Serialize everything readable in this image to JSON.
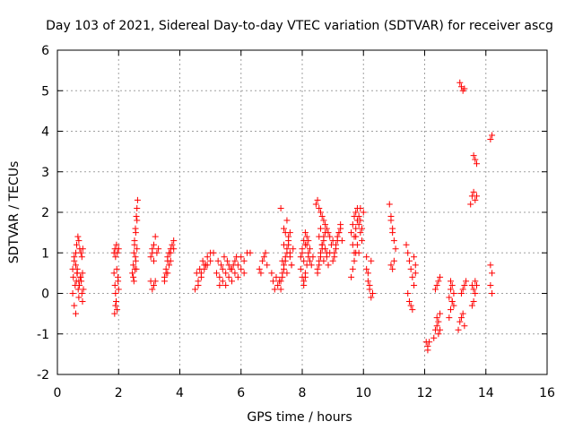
{
  "chart_data": {
    "type": "scatter",
    "title": "Day 103 of 2021, Sidereal Day-to-day VTEC variation (SDTVAR) for receiver ascg",
    "xlabel": "GPS time / hours",
    "ylabel": "SDTVAR / TECUs",
    "xlim": [
      0,
      16
    ],
    "ylim": [
      -2,
      6
    ],
    "x_ticks": [
      "0",
      "2",
      "4",
      "6",
      "8",
      "10",
      "12",
      "14",
      "16"
    ],
    "y_ticks": [
      "-2",
      "-1",
      "0",
      "1",
      "2",
      "3",
      "4",
      "5",
      "6"
    ],
    "grid": true,
    "marker": "plus",
    "color": "#ff0000",
    "series": [
      {
        "x": [
          0.5,
          0.55,
          0.6,
          0.62,
          0.65,
          0.68,
          0.7,
          0.72,
          0.75,
          0.78,
          0.8,
          0.82,
          0.85,
          0.5,
          0.55,
          0.6,
          0.63,
          0.67,
          0.7,
          0.73,
          0.77,
          0.8,
          0.83,
          0.52,
          0.58,
          0.64,
          0.7,
          0.76,
          0.82,
          0.55,
          0.6,
          0.65,
          1.85,
          1.88,
          1.9,
          1.92,
          1.95,
          1.98,
          2.0,
          1.85,
          1.88,
          1.9,
          1.93,
          1.96,
          2.0,
          1.87,
          1.9,
          1.94,
          1.98,
          2.45,
          2.48,
          2.5,
          2.52,
          2.55,
          2.58,
          2.6,
          2.62,
          2.5,
          2.53,
          2.56,
          2.6,
          2.48,
          2.52,
          2.56,
          2.6,
          2.55,
          2.58,
          3.05,
          3.1,
          3.15,
          3.2,
          3.1,
          3.15,
          3.2,
          3.05,
          3.1,
          3.15,
          3.25,
          3.3,
          3.5,
          3.55,
          3.6,
          3.65,
          3.7,
          3.75,
          3.8,
          3.55,
          3.6,
          3.65,
          3.7,
          3.5,
          3.6,
          3.7,
          3.8,
          4.5,
          4.6,
          4.7,
          4.8,
          4.9,
          5.0,
          5.1,
          4.6,
          4.7,
          4.8,
          4.9,
          5.0,
          4.55,
          4.65,
          4.75,
          4.85,
          5.2,
          5.3,
          5.4,
          5.5,
          5.6,
          5.7,
          5.8,
          5.9,
          6.0,
          6.1,
          6.2,
          6.3,
          5.3,
          5.4,
          5.5,
          5.6,
          5.7,
          5.8,
          5.9,
          6.0,
          6.1,
          5.25,
          5.35,
          5.45,
          5.55,
          5.65,
          5.75,
          5.85,
          6.6,
          6.7,
          6.8,
          6.65,
          6.75,
          6.85,
          7.0,
          7.05,
          7.1,
          7.15,
          7.2,
          7.25,
          7.3,
          7.35,
          7.4,
          7.45,
          7.5,
          7.55,
          7.6,
          7.65,
          7.7,
          7.3,
          7.35,
          7.4,
          7.45,
          7.5,
          7.55,
          7.6,
          7.35,
          7.4,
          7.45,
          7.5,
          7.55,
          7.6,
          7.65,
          7.3,
          7.4,
          7.5,
          7.95,
          8.0,
          8.05,
          8.1,
          8.15,
          8.2,
          8.25,
          8.3,
          8.35,
          7.95,
          8.0,
          8.05,
          8.1,
          8.15,
          8.2,
          8.25,
          8.0,
          8.05,
          8.1,
          8.15,
          8.2,
          8.05,
          8.1,
          8.45,
          8.5,
          8.55,
          8.6,
          8.65,
          8.7,
          8.75,
          8.8,
          8.85,
          8.9,
          8.5,
          8.55,
          8.6,
          8.65,
          8.7,
          8.75,
          8.8,
          8.85,
          8.9,
          8.95,
          9.0,
          8.5,
          8.55,
          8.6,
          8.65,
          8.7,
          8.75,
          8.8,
          8.55,
          8.6,
          8.65,
          8.7,
          9.0,
          9.05,
          9.1,
          9.15,
          9.2,
          9.25,
          9.3,
          9.05,
          9.1,
          9.15,
          9.2,
          9.25,
          9.6,
          9.65,
          9.7,
          9.75,
          9.8,
          9.85,
          9.9,
          9.95,
          10.0,
          9.65,
          9.7,
          9.75,
          9.8,
          9.85,
          9.9,
          9.95,
          9.7,
          9.75,
          9.8,
          9.85,
          9.9,
          9.6,
          9.65,
          9.7,
          9.75,
          9.8,
          10.1,
          10.15,
          10.2,
          10.25,
          10.3,
          10.1,
          10.15,
          10.2,
          10.25,
          10.85,
          10.9,
          10.95,
          11.0,
          11.05,
          10.9,
          10.95,
          11.0,
          10.9,
          10.95,
          11.4,
          11.45,
          11.5,
          11.55,
          11.6,
          11.65,
          11.7,
          11.45,
          11.5,
          11.55,
          11.6,
          11.65,
          11.7,
          12.05,
          12.1,
          12.1,
          12.15,
          12.3,
          12.35,
          12.4,
          12.45,
          12.5,
          12.35,
          12.4,
          12.45,
          12.5,
          12.4,
          12.45,
          12.5,
          12.8,
          12.85,
          12.9,
          12.95,
          12.8,
          12.85,
          12.9,
          12.95,
          12.85,
          12.9,
          13.1,
          13.15,
          13.2,
          13.25,
          13.3,
          13.15,
          13.2,
          13.25,
          13.3,
          13.2,
          13.25,
          13.3,
          13.35,
          13.5,
          13.55,
          13.6,
          13.65,
          13.7,
          13.55,
          13.6,
          13.65,
          13.6,
          13.65,
          13.7,
          13.55,
          13.6,
          13.65,
          13.7,
          14.15,
          14.2,
          14.15,
          14.2,
          14.15,
          14.2
        ],
        "y": [
          0.0,
          -0.3,
          -0.5,
          0.3,
          0.5,
          0.1,
          -0.1,
          0.2,
          0.4,
          0.3,
          0.0,
          -0.2,
          0.1,
          0.6,
          0.8,
          1.0,
          1.2,
          1.4,
          1.3,
          1.1,
          1.0,
          0.9,
          1.1,
          0.4,
          0.2,
          0.5,
          0.3,
          0.4,
          0.5,
          0.9,
          0.7,
          0.6,
          0.5,
          0.2,
          0.0,
          -0.2,
          -0.4,
          0.3,
          0.1,
          1.0,
          1.1,
          0.9,
          1.2,
          1.0,
          1.1,
          -0.5,
          -0.3,
          0.6,
          0.4,
          0.5,
          0.7,
          1.0,
          1.3,
          1.6,
          1.9,
          2.1,
          2.3,
          0.3,
          0.6,
          0.8,
          1.1,
          0.4,
          1.2,
          1.5,
          1.8,
          0.9,
          0.6,
          0.3,
          0.1,
          0.2,
          0.3,
          1.0,
          1.2,
          1.4,
          0.9,
          1.1,
          0.8,
          1.0,
          1.1,
          0.4,
          0.6,
          0.8,
          1.0,
          1.1,
          1.2,
          1.3,
          0.5,
          0.9,
          0.7,
          1.0,
          0.3,
          0.5,
          0.8,
          1.1,
          0.1,
          0.3,
          0.5,
          0.6,
          0.7,
          0.8,
          1.0,
          0.2,
          0.4,
          0.7,
          0.9,
          1.0,
          0.5,
          0.6,
          0.8,
          0.7,
          0.5,
          0.4,
          0.6,
          0.5,
          0.7,
          0.6,
          0.8,
          0.7,
          0.9,
          0.8,
          1.0,
          1.0,
          0.2,
          0.3,
          0.2,
          0.4,
          0.3,
          0.5,
          0.4,
          0.6,
          0.5,
          0.8,
          0.7,
          0.9,
          0.8,
          0.6,
          0.7,
          0.9,
          0.6,
          0.8,
          1.0,
          0.5,
          0.9,
          0.7,
          0.5,
          0.3,
          0.1,
          0.4,
          0.2,
          0.3,
          0.1,
          0.8,
          1.2,
          1.5,
          1.8,
          1.4,
          1.0,
          0.7,
          1.1,
          0.3,
          0.5,
          0.7,
          0.9,
          1.1,
          1.3,
          1.5,
          0.4,
          0.6,
          0.8,
          1.0,
          1.2,
          0.9,
          0.7,
          2.1,
          1.6,
          0.5,
          0.9,
          1.1,
          1.3,
          1.5,
          1.2,
          1.0,
          0.8,
          0.7,
          0.9,
          0.6,
          0.4,
          0.3,
          0.5,
          0.7,
          0.9,
          1.1,
          1.0,
          0.8,
          1.2,
          1.4,
          1.3,
          0.2,
          0.4,
          2.2,
          2.3,
          2.1,
          2.0,
          1.9,
          1.8,
          1.7,
          1.6,
          1.5,
          1.4,
          0.6,
          0.8,
          1.0,
          1.2,
          1.4,
          1.1,
          0.9,
          0.7,
          1.0,
          1.2,
          1.3,
          0.5,
          0.7,
          0.9,
          1.1,
          1.3,
          1.5,
          1.0,
          1.4,
          1.6,
          1.2,
          0.8,
          0.8,
          1.0,
          1.2,
          1.4,
          1.5,
          1.6,
          1.3,
          0.9,
          1.1,
          1.3,
          1.5,
          1.7,
          1.5,
          1.7,
          1.9,
          2.0,
          2.1,
          1.9,
          1.8,
          1.6,
          2.0,
          1.2,
          1.4,
          1.6,
          1.8,
          1.7,
          1.5,
          1.3,
          0.8,
          1.0,
          1.2,
          1.0,
          2.1,
          0.4,
          0.6,
          1.0,
          1.4,
          1.8,
          0.6,
          0.3,
          0.1,
          -0.1,
          0.0,
          0.9,
          0.5,
          0.2,
          0.8,
          2.2,
          1.9,
          1.6,
          1.3,
          1.1,
          0.7,
          0.6,
          0.8,
          1.8,
          1.5,
          1.2,
          1.0,
          0.8,
          0.6,
          0.4,
          0.2,
          0.5,
          0.0,
          -0.2,
          -0.3,
          -0.4,
          0.9,
          0.7,
          -1.2,
          -1.4,
          -1.3,
          -1.2,
          -1.1,
          -0.9,
          -0.8,
          -1.0,
          -0.9,
          0.1,
          0.2,
          0.3,
          0.4,
          -0.6,
          -0.7,
          -0.5,
          -0.6,
          -0.4,
          -0.2,
          -0.3,
          -0.1,
          0.1,
          0.2,
          0.0,
          0.3,
          -0.2,
          -0.9,
          -0.7,
          -0.6,
          -0.5,
          -0.8,
          5.2,
          5.1,
          5.0,
          5.05,
          0.0,
          0.1,
          0.2,
          0.3,
          2.2,
          2.4,
          2.5,
          2.3,
          2.4,
          -0.3,
          -0.2,
          0.0,
          3.4,
          3.3,
          3.2,
          0.2,
          0.1,
          0.3,
          0.2,
          3.8,
          3.9,
          0.7,
          0.5,
          0.2,
          0.0
        ]
      }
    ]
  }
}
